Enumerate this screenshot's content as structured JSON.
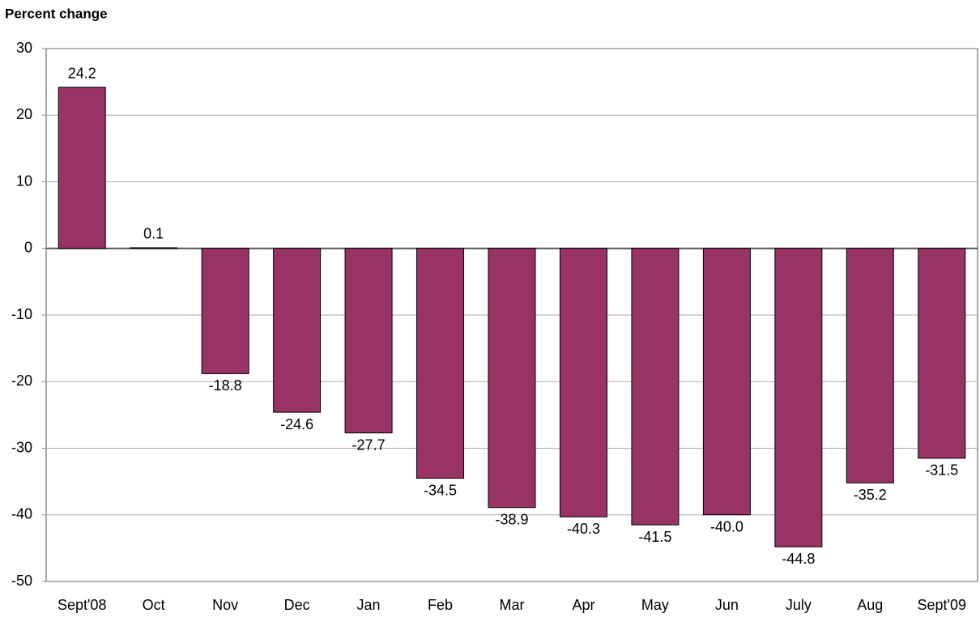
{
  "chart_data": {
    "type": "bar",
    "title": "Percent change",
    "categories": [
      "Sept'08",
      "Oct",
      "Nov",
      "Dec",
      "Jan",
      "Feb",
      "Mar",
      "Apr",
      "May",
      "Jun",
      "July",
      "Aug",
      "Sept'09"
    ],
    "values": [
      24.2,
      0.1,
      -18.8,
      -24.6,
      -27.7,
      -34.5,
      -38.9,
      -40.3,
      -41.5,
      -40.0,
      -44.8,
      -35.2,
      -31.5
    ],
    "value_labels": [
      "24.2",
      "0.1",
      "-18.8",
      "-24.6",
      "-27.7",
      "-34.5",
      "-38.9",
      "-40.3",
      "-41.5",
      "-40.0",
      "-44.8",
      "-35.2",
      "-31.5"
    ],
    "color": "#993366",
    "ylim": [
      -50,
      30
    ],
    "yticks": [
      -50,
      -40,
      -30,
      -20,
      -10,
      0,
      10,
      20,
      30
    ],
    "grid": true
  }
}
